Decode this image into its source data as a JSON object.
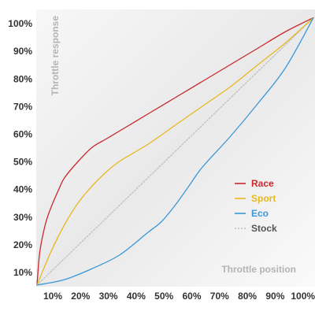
{
  "chart_data": {
    "type": "line",
    "xlabel": "Throttle position",
    "ylabel": "Throttle response",
    "x_ticks": [
      "10%",
      "20%",
      "30%",
      "40%",
      "50%",
      "60%",
      "70%",
      "80%",
      "90%",
      "100%"
    ],
    "y_ticks": [
      "10%",
      "20%",
      "30%",
      "40%",
      "50%",
      "60%",
      "70%",
      "80%",
      "90%",
      "100%"
    ],
    "xlim": [
      0,
      100
    ],
    "ylim": [
      0,
      100
    ],
    "grid": false,
    "legend_position": "right",
    "series": [
      {
        "name": "Race",
        "color": "#c8282d",
        "style": "solid",
        "x": [
          0,
          1,
          3,
          5,
          8,
          10,
          15,
          20,
          25,
          30,
          40,
          50,
          60,
          70,
          80,
          90,
          100
        ],
        "y": [
          0,
          12,
          22,
          28,
          35,
          39,
          45,
          50,
          53,
          56,
          62,
          68,
          74,
          80,
          86,
          92,
          97
        ]
      },
      {
        "name": "Sport",
        "color": "#e8b820",
        "style": "solid",
        "x": [
          0,
          5,
          10,
          15,
          20,
          25,
          30,
          40,
          50,
          60,
          70,
          80,
          90,
          100
        ],
        "y": [
          0,
          12,
          22,
          30,
          36,
          41,
          45,
          51,
          58,
          65,
          72,
          80,
          88,
          97
        ]
      },
      {
        "name": "Eco",
        "color": "#3a98d8",
        "style": "solid",
        "x": [
          0,
          10,
          20,
          30,
          40,
          45,
          50,
          55,
          60,
          70,
          80,
          90,
          100
        ],
        "y": [
          0,
          2,
          6,
          11,
          19,
          23,
          29,
          36,
          43,
          54,
          66,
          79,
          97
        ]
      },
      {
        "name": "Stock",
        "color": "#bdbdbd",
        "style": "dotted",
        "x": [
          0,
          100
        ],
        "y": [
          0,
          97
        ]
      }
    ]
  }
}
